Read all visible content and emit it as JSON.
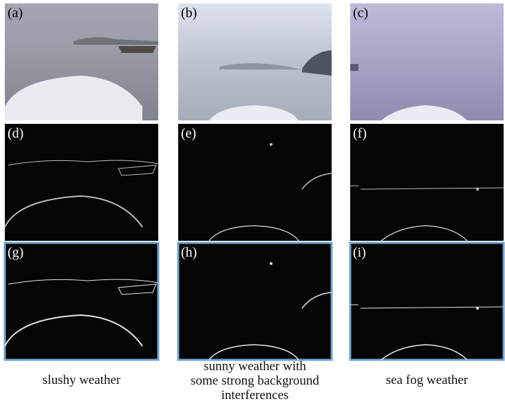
{
  "panels": [
    [
      "(a)",
      "(b)",
      "(c)"
    ],
    [
      "(d)",
      "(e)",
      "(f)"
    ],
    [
      "(g)",
      "(h)",
      "(i)"
    ]
  ],
  "captions": [
    [
      "slushy weather"
    ],
    [
      "sunny weather with",
      "some strong background",
      "interferences"
    ],
    [
      "sea fog weather"
    ]
  ]
}
